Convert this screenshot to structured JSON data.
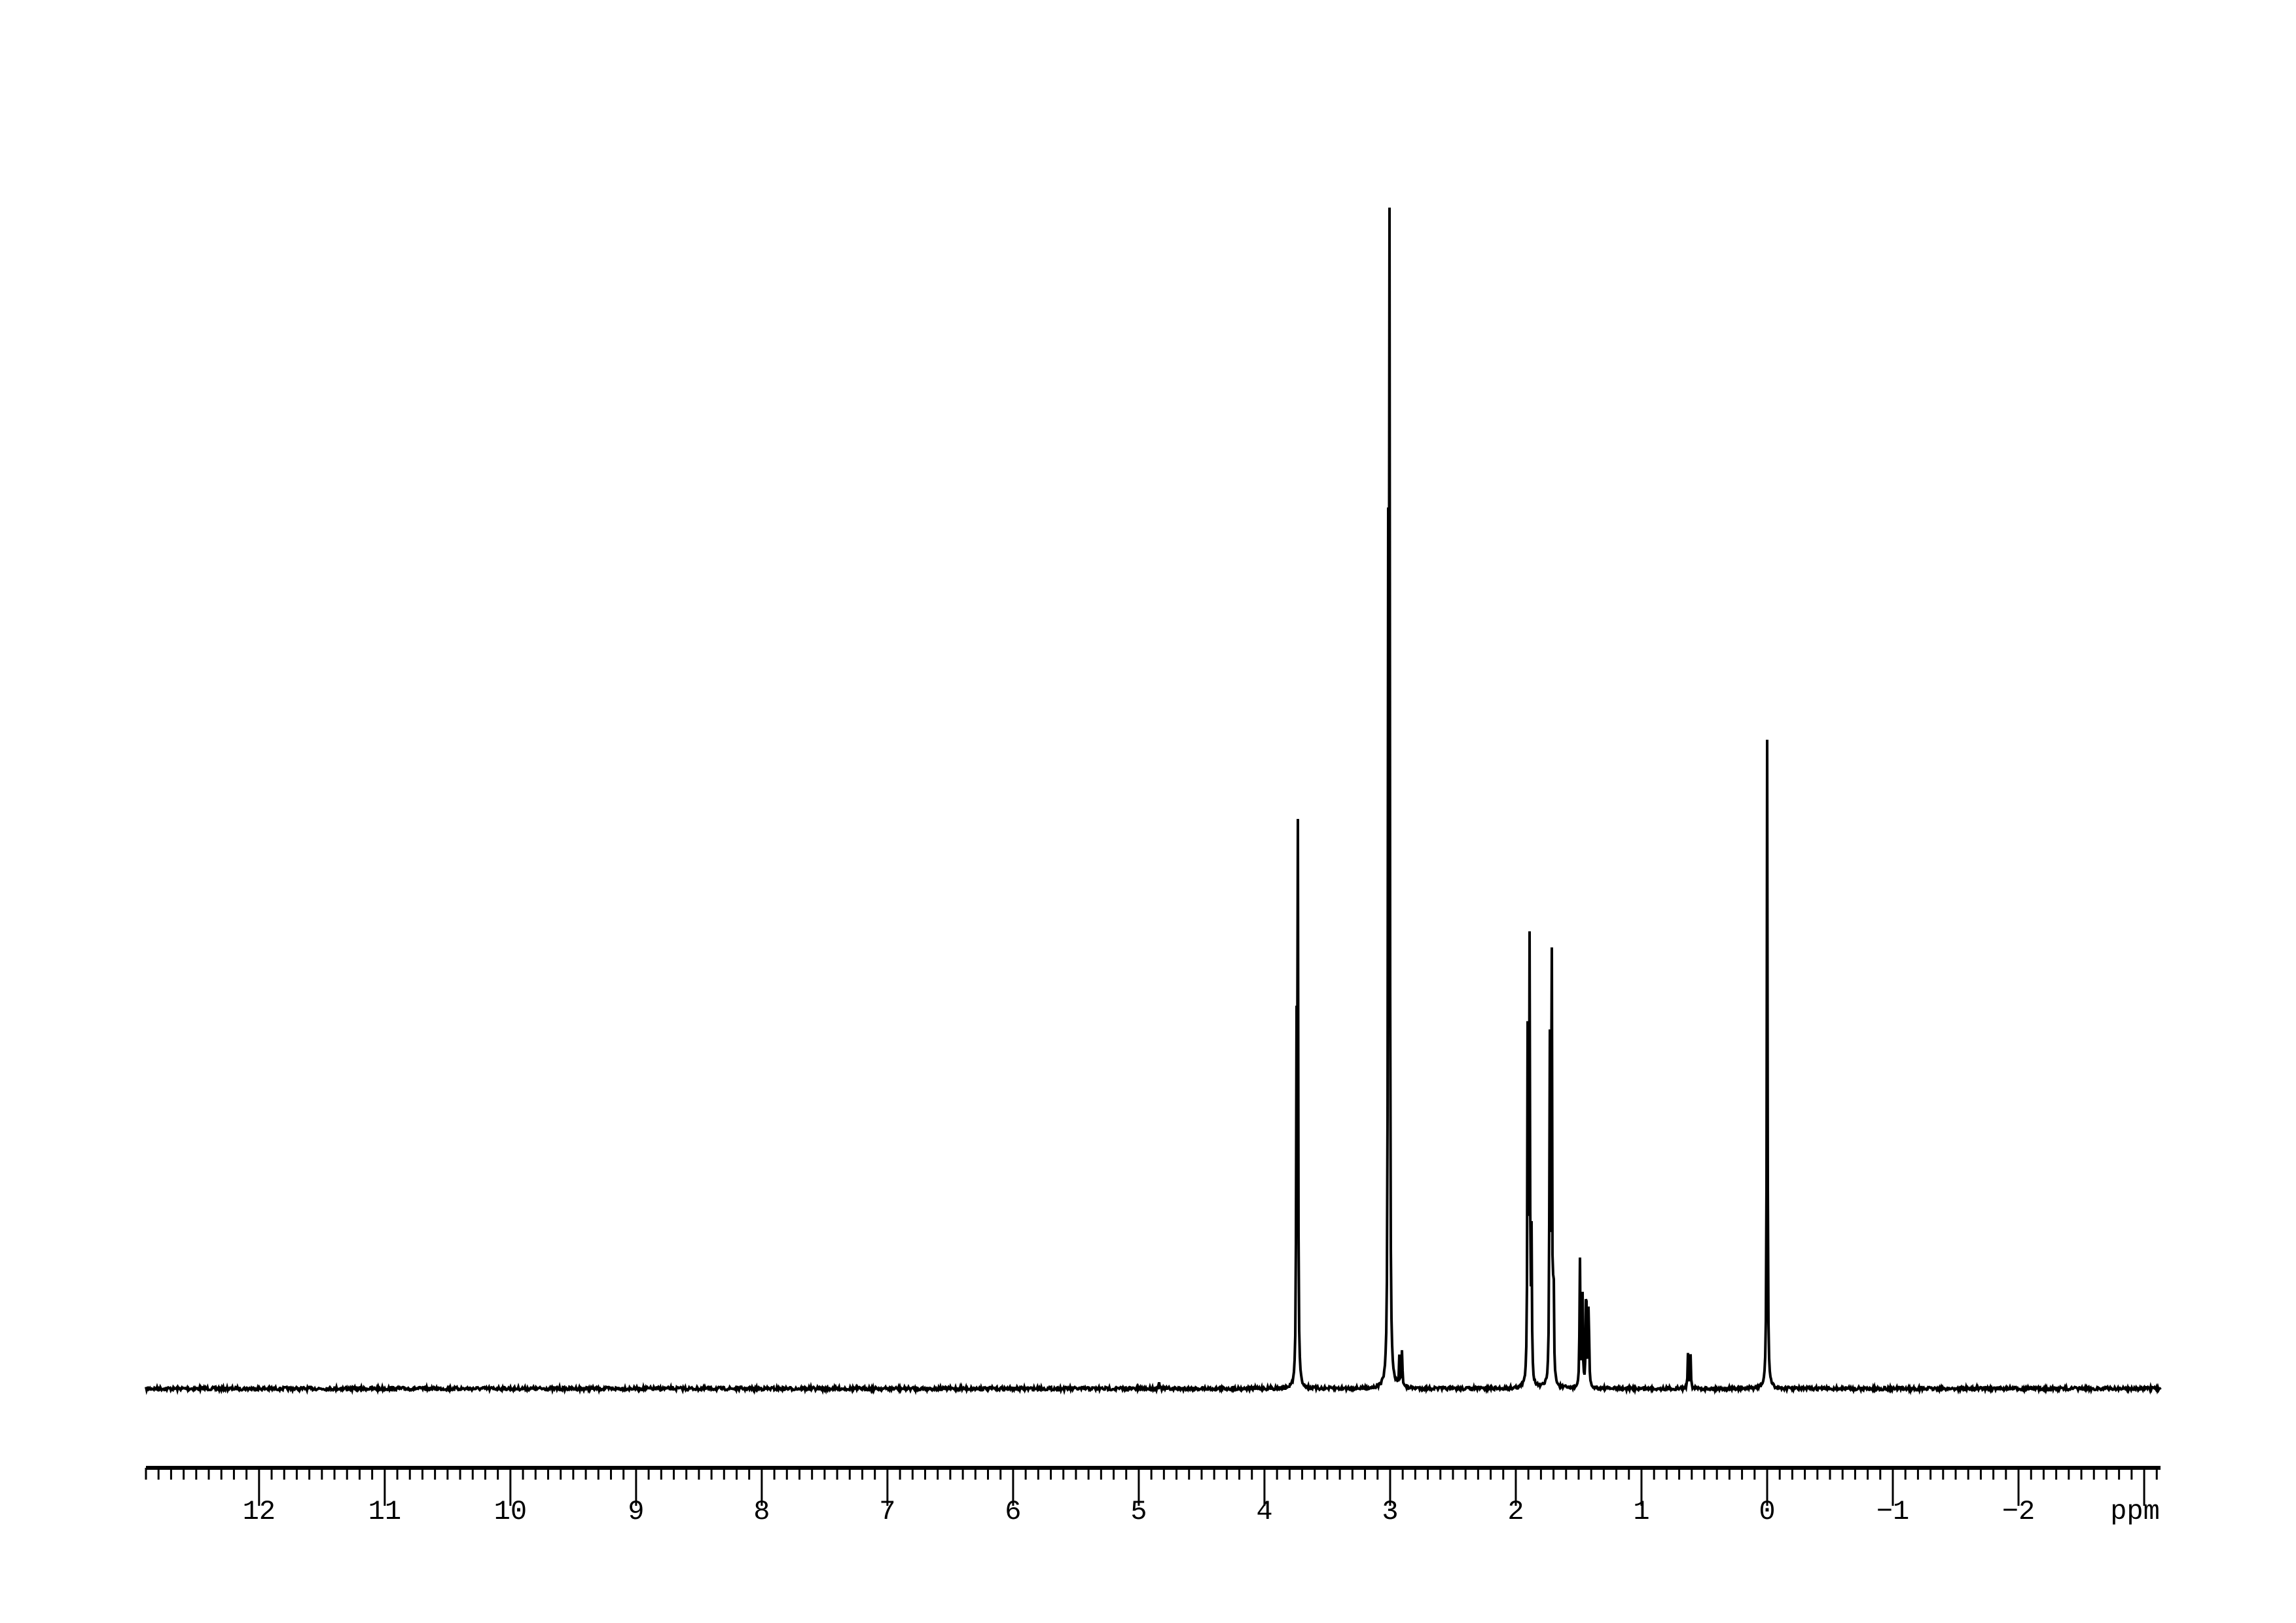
{
  "chart_data": {
    "type": "line",
    "title": "",
    "xlabel": "ppm",
    "ylabel": "",
    "xlim": [
      12.9,
      -3.13
    ],
    "x_reversed": true,
    "grid": false,
    "line_color": "#000000",
    "x_ticks": [
      12,
      11,
      10,
      9,
      8,
      7,
      6,
      5,
      4,
      3,
      2,
      1,
      0,
      -1,
      -2
    ],
    "x_tick_labels": [
      "12",
      "11",
      "10",
      "9",
      "8",
      "7",
      "6",
      "5",
      "4",
      "3",
      "2",
      "1",
      "0",
      "−1",
      "−2"
    ],
    "minor_tick_step": 0.1,
    "peaks": [
      {
        "ppm": 4.84,
        "intensity": 0.008
      },
      {
        "ppm": 3.745,
        "intensity": 0.27
      },
      {
        "ppm": 3.735,
        "intensity": 0.49
      },
      {
        "ppm": 3.015,
        "intensity": 0.65
      },
      {
        "ppm": 3.005,
        "intensity": 1.0
      },
      {
        "ppm": 2.925,
        "intensity": 0.033
      },
      {
        "ppm": 2.905,
        "intensity": 0.033
      },
      {
        "ppm": 1.905,
        "intensity": 0.32
      },
      {
        "ppm": 1.89,
        "intensity": 0.37
      },
      {
        "ppm": 1.875,
        "intensity": 0.12
      },
      {
        "ppm": 1.73,
        "intensity": 0.3
      },
      {
        "ppm": 1.715,
        "intensity": 0.43
      },
      {
        "ppm": 1.7,
        "intensity": 0.1
      },
      {
        "ppm": 1.49,
        "intensity": 0.11
      },
      {
        "ppm": 1.47,
        "intensity": 0.09
      },
      {
        "ppm": 1.44,
        "intensity": 0.11
      },
      {
        "ppm": 1.42,
        "intensity": 0.08
      },
      {
        "ppm": 0.63,
        "intensity": 0.03
      },
      {
        "ppm": 0.61,
        "intensity": 0.03
      },
      {
        "ppm": 0.0,
        "intensity": 0.55
      }
    ]
  }
}
